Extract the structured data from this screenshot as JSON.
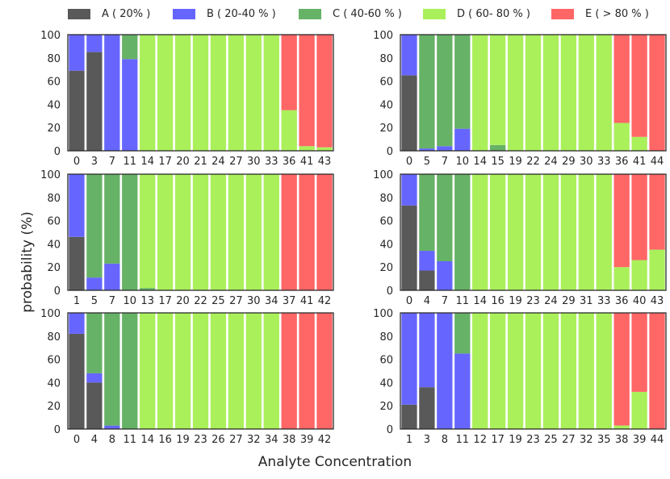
{
  "legend": [
    {
      "key": "A",
      "label": "A ( 20% )",
      "color": "#595959"
    },
    {
      "key": "B",
      "label": "B ( 20-40 % )",
      "color": "#6666ff"
    },
    {
      "key": "C",
      "label": "C ( 40-60 % )",
      "color": "#66b266"
    },
    {
      "key": "D",
      "label": "D ( 60- 80 % )",
      "color": "#aaf05a"
    },
    {
      "key": "E",
      "label": "E ( > 80 % )",
      "color": "#ff6666"
    }
  ],
  "ylabel": "probability (%)",
  "xlabel": "Analyte Concentration",
  "chart_data": [
    {
      "type": "bar",
      "stacked": true,
      "position": "top-left",
      "ylim": [
        0,
        100
      ],
      "yticks": [
        "0",
        "20",
        "40",
        "60",
        "80",
        "100"
      ],
      "categories": [
        "0",
        "3",
        "7",
        "11",
        "14",
        "17",
        "20",
        "21",
        "24",
        "27",
        "30",
        "33",
        "36",
        "41",
        "43"
      ],
      "series": [
        {
          "name": "A",
          "values": [
            69,
            85,
            0,
            0,
            0,
            0,
            0,
            0,
            0,
            0,
            0,
            0,
            0,
            0,
            0
          ]
        },
        {
          "name": "B",
          "values": [
            31,
            15,
            100,
            79,
            0,
            0,
            0,
            0,
            0,
            0,
            0,
            0,
            0,
            0,
            0
          ]
        },
        {
          "name": "C",
          "values": [
            0,
            0,
            0,
            21,
            0,
            0,
            0,
            0,
            0,
            0,
            0,
            0,
            0,
            0,
            0
          ]
        },
        {
          "name": "D",
          "values": [
            0,
            0,
            0,
            0,
            100,
            100,
            100,
            100,
            100,
            100,
            100,
            100,
            35,
            4,
            3
          ]
        },
        {
          "name": "E",
          "values": [
            0,
            0,
            0,
            0,
            0,
            0,
            0,
            0,
            0,
            0,
            0,
            0,
            65,
            96,
            97
          ]
        }
      ]
    },
    {
      "type": "bar",
      "stacked": true,
      "position": "top-right",
      "ylim": [
        0,
        100
      ],
      "yticks": [
        "0",
        "20",
        "40",
        "60",
        "80",
        "100"
      ],
      "categories": [
        "0",
        "5",
        "7",
        "10",
        "14",
        "15",
        "19",
        "22",
        "24",
        "29",
        "30",
        "33",
        "36",
        "41",
        "44"
      ],
      "series": [
        {
          "name": "A",
          "values": [
            65,
            0,
            0,
            0,
            0,
            0,
            0,
            0,
            0,
            0,
            0,
            0,
            0,
            0,
            0
          ]
        },
        {
          "name": "B",
          "values": [
            35,
            2,
            4,
            19,
            0,
            0,
            0,
            0,
            0,
            0,
            0,
            0,
            0,
            0,
            0
          ]
        },
        {
          "name": "C",
          "values": [
            0,
            98,
            96,
            81,
            0,
            5,
            0,
            0,
            0,
            0,
            0,
            0,
            0,
            0,
            0
          ]
        },
        {
          "name": "D",
          "values": [
            0,
            0,
            0,
            0,
            100,
            95,
            100,
            100,
            100,
            100,
            100,
            100,
            24,
            12,
            0
          ]
        },
        {
          "name": "E",
          "values": [
            0,
            0,
            0,
            0,
            0,
            0,
            0,
            0,
            0,
            0,
            0,
            0,
            76,
            88,
            100
          ]
        }
      ]
    },
    {
      "type": "bar",
      "stacked": true,
      "position": "middle-left",
      "ylim": [
        0,
        100
      ],
      "yticks": [
        "0",
        "20",
        "40",
        "60",
        "80",
        "100"
      ],
      "categories": [
        "1",
        "5",
        "7",
        "10",
        "13",
        "17",
        "20",
        "22",
        "25",
        "27",
        "30",
        "34",
        "37",
        "41",
        "42"
      ],
      "series": [
        {
          "name": "A",
          "values": [
            46,
            0,
            0,
            0,
            0,
            0,
            0,
            0,
            0,
            0,
            0,
            0,
            0,
            0,
            0
          ]
        },
        {
          "name": "B",
          "values": [
            54,
            11,
            23,
            0,
            0,
            0,
            0,
            0,
            0,
            0,
            0,
            0,
            0,
            0,
            0
          ]
        },
        {
          "name": "C",
          "values": [
            0,
            89,
            77,
            100,
            2,
            0,
            0,
            0,
            0,
            0,
            0,
            0,
            0,
            0,
            0
          ]
        },
        {
          "name": "D",
          "values": [
            0,
            0,
            0,
            0,
            98,
            100,
            100,
            100,
            100,
            100,
            100,
            100,
            0,
            0,
            0
          ]
        },
        {
          "name": "E",
          "values": [
            0,
            0,
            0,
            0,
            0,
            0,
            0,
            0,
            0,
            0,
            0,
            0,
            100,
            100,
            100
          ]
        }
      ]
    },
    {
      "type": "bar",
      "stacked": true,
      "position": "middle-right",
      "ylim": [
        0,
        100
      ],
      "yticks": [
        "0",
        "20",
        "40",
        "60",
        "80",
        "100"
      ],
      "categories": [
        "0",
        "4",
        "7",
        "11",
        "14",
        "16",
        "19",
        "23",
        "24",
        "29",
        "31",
        "33",
        "36",
        "40",
        "43"
      ],
      "series": [
        {
          "name": "A",
          "values": [
            73,
            17,
            0,
            0,
            0,
            0,
            0,
            0,
            0,
            0,
            0,
            0,
            0,
            0,
            0
          ]
        },
        {
          "name": "B",
          "values": [
            27,
            17,
            25,
            0,
            0,
            0,
            0,
            0,
            0,
            0,
            0,
            0,
            0,
            0,
            0
          ]
        },
        {
          "name": "C",
          "values": [
            0,
            66,
            75,
            100,
            0,
            0,
            0,
            0,
            0,
            0,
            0,
            0,
            0,
            0,
            0
          ]
        },
        {
          "name": "D",
          "values": [
            0,
            0,
            0,
            0,
            100,
            100,
            100,
            100,
            100,
            100,
            100,
            100,
            20,
            26,
            35
          ]
        },
        {
          "name": "E",
          "values": [
            0,
            0,
            0,
            0,
            0,
            0,
            0,
            0,
            0,
            0,
            0,
            0,
            80,
            74,
            65
          ]
        }
      ]
    },
    {
      "type": "bar",
      "stacked": true,
      "position": "bottom-left",
      "ylim": [
        0,
        100
      ],
      "yticks": [
        "0",
        "20",
        "40",
        "60",
        "80",
        "100"
      ],
      "categories": [
        "0",
        "4",
        "8",
        "11",
        "14",
        "16",
        "19",
        "23",
        "26",
        "27",
        "32",
        "34",
        "38",
        "39",
        "42"
      ],
      "series": [
        {
          "name": "A",
          "values": [
            82,
            40,
            0,
            0,
            0,
            0,
            0,
            0,
            0,
            0,
            0,
            0,
            0,
            0,
            0
          ]
        },
        {
          "name": "B",
          "values": [
            18,
            8,
            3,
            0,
            0,
            0,
            0,
            0,
            0,
            0,
            0,
            0,
            0,
            0,
            0
          ]
        },
        {
          "name": "C",
          "values": [
            0,
            52,
            97,
            100,
            0,
            0,
            0,
            0,
            0,
            0,
            0,
            0,
            0,
            0,
            0
          ]
        },
        {
          "name": "D",
          "values": [
            0,
            0,
            0,
            0,
            100,
            100,
            100,
            100,
            100,
            100,
            100,
            100,
            0,
            0,
            0
          ]
        },
        {
          "name": "E",
          "values": [
            0,
            0,
            0,
            0,
            0,
            0,
            0,
            0,
            0,
            0,
            0,
            0,
            100,
            100,
            100
          ]
        }
      ]
    },
    {
      "type": "bar",
      "stacked": true,
      "position": "bottom-right",
      "ylim": [
        0,
        100
      ],
      "yticks": [
        "0",
        "20",
        "40",
        "60",
        "80",
        "100"
      ],
      "categories": [
        "1",
        "3",
        "8",
        "11",
        "12",
        "17",
        "19",
        "23",
        "25",
        "27",
        "32",
        "35",
        "38",
        "39",
        "44"
      ],
      "series": [
        {
          "name": "A",
          "values": [
            21,
            36,
            0,
            0,
            0,
            0,
            0,
            0,
            0,
            0,
            0,
            0,
            0,
            0,
            0
          ]
        },
        {
          "name": "B",
          "values": [
            79,
            64,
            100,
            65,
            0,
            0,
            0,
            0,
            0,
            0,
            0,
            0,
            0,
            0,
            0
          ]
        },
        {
          "name": "C",
          "values": [
            0,
            0,
            0,
            35,
            0,
            0,
            0,
            0,
            0,
            0,
            0,
            0,
            0,
            0,
            0
          ]
        },
        {
          "name": "D",
          "values": [
            0,
            0,
            0,
            0,
            100,
            100,
            100,
            100,
            100,
            100,
            100,
            100,
            3,
            32,
            0
          ]
        },
        {
          "name": "E",
          "values": [
            0,
            0,
            0,
            0,
            0,
            0,
            0,
            0,
            0,
            0,
            0,
            0,
            97,
            68,
            100
          ]
        }
      ]
    }
  ]
}
